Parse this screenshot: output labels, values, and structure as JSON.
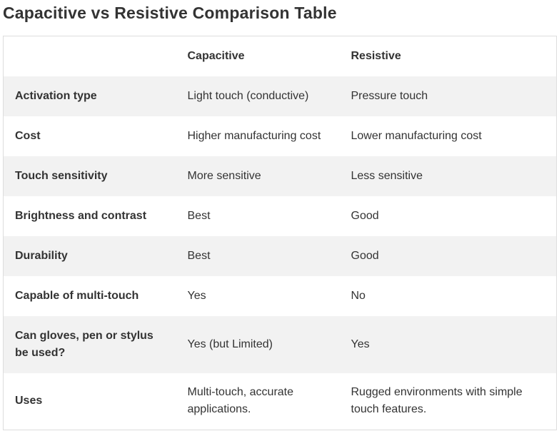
{
  "title": "Capacitive vs Resistive Comparison Table",
  "table": {
    "columns": [
      "Capacitive",
      "Resistive"
    ],
    "rows": [
      [
        "Activation type",
        "Light touch (conductive)",
        "Pressure touch"
      ],
      [
        "Cost",
        "Higher manufacturing cost",
        "Lower manufacturing cost"
      ],
      [
        "Touch sensitivity",
        "More sensitive",
        "Less sensitive"
      ],
      [
        "Brightness and contrast",
        "Best",
        "Good"
      ],
      [
        "Durability",
        "Best",
        "Good"
      ],
      [
        "Capable of multi-touch",
        "Yes",
        "No"
      ],
      [
        "Can gloves, pen or stylus be used?",
        "Yes (but Limited)",
        "Yes"
      ],
      [
        "Uses",
        "Multi-touch, accurate applications.",
        "Rugged environments with simple touch features."
      ]
    ]
  }
}
